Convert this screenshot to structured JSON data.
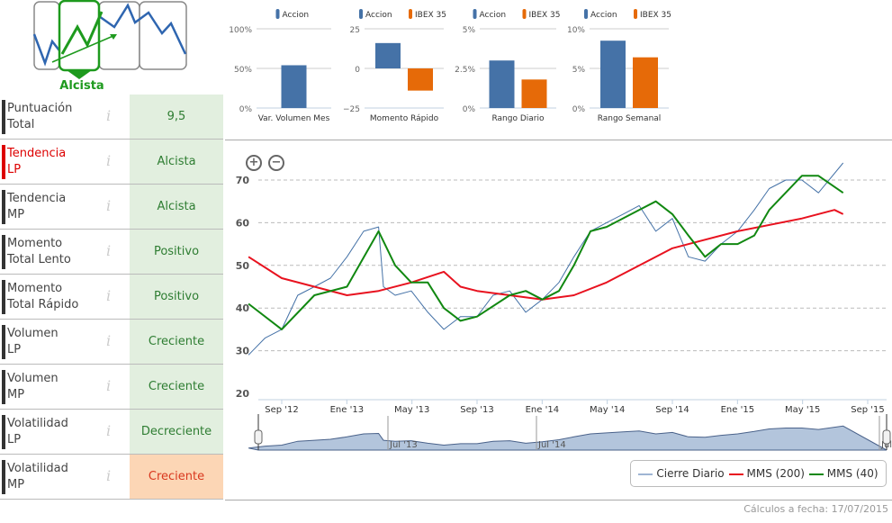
{
  "logo": {
    "label": "Alcista",
    "colors": {
      "green": "#1e9a1e",
      "blue": "#2f66b0"
    }
  },
  "rows": [
    {
      "label1": "Puntuación",
      "label2": "Total",
      "value": "9,5"
    },
    {
      "label1": "Tendencia",
      "label2": "LP",
      "value": "Alcista",
      "highlight": true
    },
    {
      "label1": "Tendencia",
      "label2": "MP",
      "value": "Alcista"
    },
    {
      "label1": "Momento",
      "label2": "Total Lento",
      "value": "Positivo"
    },
    {
      "label1": "Momento",
      "label2": "Total Rápido",
      "value": "Positivo"
    },
    {
      "label1": "Volumen",
      "label2": "LP",
      "value": "Creciente"
    },
    {
      "label1": "Volumen",
      "label2": "MP",
      "value": "Creciente"
    },
    {
      "label1": "Volatilidad",
      "label2": "LP",
      "value": "Decreciente"
    },
    {
      "label1": "Volatilidad",
      "label2": "MP",
      "value": "Creciente",
      "warn": true
    }
  ],
  "info_icon": "i",
  "chart_data": [
    {
      "type": "bar",
      "title": "Var. Volumen Mes",
      "ticks": [
        "100%",
        "50%",
        "0%"
      ],
      "ylim": [
        0,
        100
      ],
      "series": [
        {
          "name": "Accion",
          "color": "#4572a7",
          "values": [
            54
          ]
        }
      ]
    },
    {
      "type": "bar",
      "title": "Momento Rápido",
      "ticks": [
        "25",
        "0",
        "−25"
      ],
      "ylim": [
        -25,
        25
      ],
      "series": [
        {
          "name": "Accion",
          "color": "#4572a7",
          "values": [
            16
          ]
        },
        {
          "name": "IBEX 35",
          "color": "#e66a08",
          "values": [
            -14
          ]
        }
      ]
    },
    {
      "type": "bar",
      "title": "Rango Diario",
      "ticks": [
        "5%",
        "2.5%",
        "0%"
      ],
      "ylim": [
        0,
        5
      ],
      "series": [
        {
          "name": "Accion",
          "color": "#4572a7",
          "values": [
            3.0
          ]
        },
        {
          "name": "IBEX 35",
          "color": "#e66a08",
          "values": [
            1.8
          ]
        }
      ]
    },
    {
      "type": "bar",
      "title": "Rango Semanal",
      "ticks": [
        "10%",
        "5%",
        "0%"
      ],
      "ylim": [
        0,
        10
      ],
      "series": [
        {
          "name": "Accion",
          "color": "#4572a7",
          "values": [
            8.5
          ]
        },
        {
          "name": "IBEX 35",
          "color": "#e66a08",
          "values": [
            6.4
          ]
        }
      ]
    },
    {
      "type": "line",
      "ylim": [
        20,
        70
      ],
      "yticks": [
        "20",
        "30",
        "40",
        "50",
        "60",
        "70"
      ],
      "xticks": [
        "Sep '12",
        "Ene '13",
        "May '13",
        "Sep '13",
        "Ene '14",
        "May '14",
        "Sep '14",
        "Ene '15",
        "May '15",
        "Sep '15"
      ],
      "navigator_labels": [
        "Jul '13",
        "Jul '14",
        "Jul"
      ],
      "series": [
        {
          "name": "Cierre Diario",
          "color": "#4572a7",
          "points": [
            [
              "2012-07",
              29
            ],
            [
              "2012-08",
              33
            ],
            [
              "2012-09",
              35
            ],
            [
              "2012-10",
              43
            ],
            [
              "2012-11",
              45
            ],
            [
              "2012-12",
              47
            ],
            [
              "2013-01",
              52
            ],
            [
              "2013-02",
              58
            ],
            [
              "2013-03",
              59
            ],
            [
              "2013-03-10",
              45
            ],
            [
              "2013-04",
              43
            ],
            [
              "2013-05",
              44
            ],
            [
              "2013-06",
              39
            ],
            [
              "2013-07",
              35
            ],
            [
              "2013-08",
              38
            ],
            [
              "2013-09",
              38
            ],
            [
              "2013-10",
              43
            ],
            [
              "2013-11",
              44
            ],
            [
              "2013-12",
              39
            ],
            [
              "2014-01",
              42
            ],
            [
              "2014-02",
              46
            ],
            [
              "2014-03",
              52
            ],
            [
              "2014-04",
              58
            ],
            [
              "2014-05",
              60
            ],
            [
              "2014-06",
              62
            ],
            [
              "2014-07",
              64
            ],
            [
              "2014-08",
              58
            ],
            [
              "2014-09",
              61
            ],
            [
              "2014-10",
              52
            ],
            [
              "2014-11",
              51
            ],
            [
              "2014-12",
              55
            ],
            [
              "2015-01",
              58
            ],
            [
              "2015-02",
              63
            ],
            [
              "2015-03",
              68
            ],
            [
              "2015-04",
              70
            ],
            [
              "2015-05",
              70
            ],
            [
              "2015-06",
              67
            ],
            [
              "2015-07-17",
              74
            ]
          ]
        },
        {
          "name": "MMS (200)",
          "color": "#e8121f",
          "points": [
            [
              "2012-07",
              52
            ],
            [
              "2012-09",
              47
            ],
            [
              "2013-01",
              43
            ],
            [
              "2013-03",
              44
            ],
            [
              "2013-05",
              46
            ],
            [
              "2013-07",
              48.5
            ],
            [
              "2013-08",
              45
            ],
            [
              "2013-09",
              44
            ],
            [
              "2014-01",
              42
            ],
            [
              "2014-03",
              43
            ],
            [
              "2014-05",
              46
            ],
            [
              "2014-09",
              54
            ],
            [
              "2015-01",
              58
            ],
            [
              "2015-05",
              61
            ],
            [
              "2015-07",
              63
            ],
            [
              "2015-07-17",
              62
            ]
          ]
        },
        {
          "name": "MMS (40)",
          "color": "#118811",
          "points": [
            [
              "2012-07",
              41
            ],
            [
              "2012-09",
              35
            ],
            [
              "2012-11",
              43
            ],
            [
              "2013-01",
              45
            ],
            [
              "2013-03",
              58
            ],
            [
              "2013-04",
              50
            ],
            [
              "2013-05",
              46
            ],
            [
              "2013-06",
              46
            ],
            [
              "2013-07",
              40
            ],
            [
              "2013-08",
              37
            ],
            [
              "2013-09",
              38
            ],
            [
              "2013-11",
              43
            ],
            [
              "2013-12",
              44
            ],
            [
              "2014-01",
              42
            ],
            [
              "2014-02",
              44
            ],
            [
              "2014-03",
              50
            ],
            [
              "2014-04",
              58
            ],
            [
              "2014-05",
              59
            ],
            [
              "2014-07",
              63
            ],
            [
              "2014-08",
              65
            ],
            [
              "2014-09",
              62
            ],
            [
              "2014-10",
              57
            ],
            [
              "2014-11",
              52
            ],
            [
              "2014-12",
              55
            ],
            [
              "2015-01",
              55
            ],
            [
              "2015-02",
              57
            ],
            [
              "2015-03",
              63
            ],
            [
              "2015-05",
              71
            ],
            [
              "2015-06",
              71
            ],
            [
              "2015-07-17",
              67
            ]
          ]
        }
      ]
    }
  ],
  "zoom": {
    "in": "+",
    "out": "−"
  },
  "footnote": "Cálculos a fecha: 17/07/2015"
}
